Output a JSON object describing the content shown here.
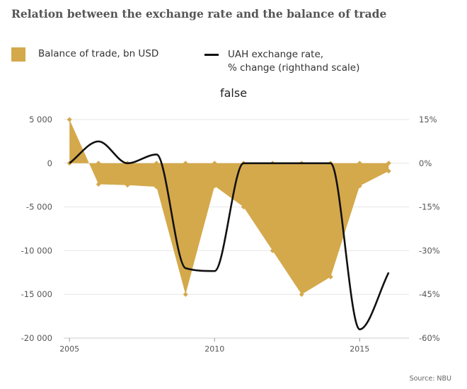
{
  "header": {
    "title": "Relation between the exchange rate and the balance of trade"
  },
  "legend": {
    "balance_label": "Balance of trade, bn USD",
    "rate_label_line1": "UAH exchange rate,",
    "rate_label_line2": "% change (righthand scale)"
  },
  "colors": {
    "balance": "#d4a94b",
    "rate": "#111111",
    "grid": "#e6e6e6"
  },
  "source": "Source: NBU",
  "chart_data": {
    "type": "area",
    "title": "false",
    "x": [
      2005,
      2006,
      2007,
      2008,
      2009,
      2010,
      2011,
      2012,
      2013,
      2014,
      2015,
      2016
    ],
    "series": [
      {
        "name": "Balance of trade, bn USD",
        "type": "area",
        "axis": "left",
        "values": [
          5000,
          -2400,
          -2500,
          -2700,
          -15000,
          -2600,
          -5000,
          -10000,
          -15000,
          -13000,
          -2600,
          -900
        ]
      },
      {
        "name": "UAH exchange rate, % change (righthand scale)",
        "type": "line",
        "axis": "right",
        "values": [
          0,
          7.5,
          0,
          3,
          -36,
          -37,
          0,
          0,
          0,
          0,
          -57,
          -37.5
        ]
      }
    ],
    "y_left": {
      "min": -20000,
      "max": 5000,
      "ticks": [
        5000,
        0,
        -5000,
        -10000,
        -15000,
        -20000
      ],
      "tick_labels": [
        "5 000",
        "0",
        "-5 000",
        "-10 000",
        "-15 000",
        "-20 000"
      ]
    },
    "y_right": {
      "min": -60,
      "max": 15,
      "ticks": [
        15,
        0,
        -15,
        -30,
        -45,
        -60
      ],
      "tick_labels": [
        "15%",
        "0%",
        "-15%",
        "-30%",
        "-45%",
        "-60%"
      ]
    },
    "x_ticks": [
      2005,
      2010,
      2015
    ],
    "x_tick_labels": [
      "2005",
      "2010",
      "2015"
    ],
    "grid": true,
    "legend_position": "top"
  }
}
